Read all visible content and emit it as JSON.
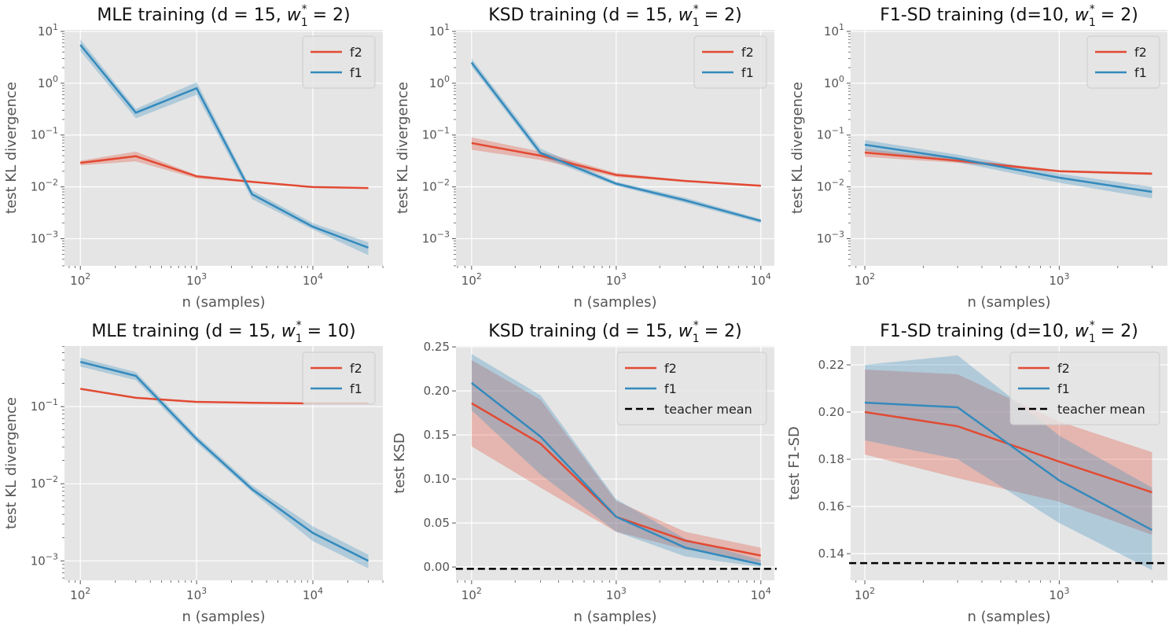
{
  "colors": {
    "f2": "#E24A33",
    "f1": "#348ABD",
    "teacher": "#000000",
    "axes_bg": "#E5E5E5",
    "grid": "#FFFFFF"
  },
  "chart_data": [
    {
      "type": "line",
      "title": {
        "before": "MLE training (d = 15, ",
        "var": "w",
        "sub": "1",
        "sup": "*",
        "after": " = 2)"
      },
      "xlabel": "n (samples)",
      "ylabel": "test KL divergence",
      "xscale": "log",
      "yscale": "log",
      "grid": true,
      "legend": "top-right",
      "xlim": [
        73,
        40000
      ],
      "ylim": [
        0.0003,
        10.7
      ],
      "xticks": [
        100,
        1000,
        10000
      ],
      "yticks": [
        0.001,
        0.01,
        0.1,
        1,
        10
      ],
      "x": [
        100,
        300,
        1000,
        3000,
        10000,
        30000
      ],
      "series": [
        {
          "name": "f2",
          "color": "#E24A33",
          "values": [
            0.029,
            0.039,
            0.016,
            0.0125,
            0.0099,
            0.0095
          ],
          "lower": [
            0.026,
            0.031,
            0.0145,
            0.012,
            0.0096,
            0.0092
          ],
          "upper": [
            0.032,
            0.048,
            0.017,
            0.013,
            0.0102,
            0.0098
          ]
        },
        {
          "name": "f1",
          "color": "#348ABD",
          "values": [
            5.5,
            0.27,
            0.8,
            0.0072,
            0.0017,
            0.00067
          ],
          "lower": [
            4.2,
            0.21,
            0.6,
            0.0058,
            0.0015,
            0.00048
          ],
          "upper": [
            7.0,
            0.32,
            1.05,
            0.0085,
            0.002,
            0.00085
          ]
        }
      ]
    },
    {
      "type": "line",
      "title": {
        "before": "KSD training (d = 15, ",
        "var": "w",
        "sub": "1",
        "sup": "*",
        "after": " = 2)"
      },
      "xlabel": "n (samples)",
      "ylabel": "test KL divergence",
      "xscale": "log",
      "yscale": "log",
      "grid": true,
      "legend": "top-right",
      "xlim": [
        78,
        12400
      ],
      "ylim": [
        0.0003,
        10.7
      ],
      "xticks": [
        100,
        1000,
        10000
      ],
      "yticks": [
        0.001,
        0.01,
        0.1,
        1,
        10
      ],
      "x": [
        100,
        300,
        1000,
        3000,
        10000
      ],
      "series": [
        {
          "name": "f2",
          "color": "#E24A33",
          "values": [
            0.07,
            0.04,
            0.017,
            0.013,
            0.0105
          ],
          "lower": [
            0.052,
            0.033,
            0.0155,
            0.0125,
            0.01
          ],
          "upper": [
            0.09,
            0.048,
            0.0185,
            0.0135,
            0.011
          ]
        },
        {
          "name": "f1",
          "color": "#348ABD",
          "values": [
            2.5,
            0.045,
            0.0115,
            0.0055,
            0.0022
          ],
          "lower": [
            2.1,
            0.038,
            0.0105,
            0.0049,
            0.002
          ],
          "upper": [
            3.0,
            0.055,
            0.0125,
            0.0062,
            0.0024
          ]
        }
      ]
    },
    {
      "type": "line",
      "title": {
        "before": "F1-SD training (d=10, ",
        "var": "w",
        "sub": "1",
        "sup": "*",
        "after": " = 2)"
      },
      "xlabel": "n (samples)",
      "ylabel": "test KL divergence",
      "xscale": "log",
      "yscale": "log",
      "grid": true,
      "legend": "top-right",
      "xlim": [
        84.5,
        3600
      ],
      "ylim": [
        0.0003,
        10.7
      ],
      "xticks": [
        100,
        1000
      ],
      "yticks": [
        0.001,
        0.01,
        0.1,
        1,
        10
      ],
      "x": [
        100,
        300,
        1000,
        3000
      ],
      "series": [
        {
          "name": "f2",
          "color": "#E24A33",
          "values": [
            0.046,
            0.032,
            0.02,
            0.018
          ],
          "lower": [
            0.038,
            0.029,
            0.019,
            0.017
          ],
          "upper": [
            0.054,
            0.035,
            0.021,
            0.019
          ]
        },
        {
          "name": "f1",
          "color": "#348ABD",
          "values": [
            0.065,
            0.035,
            0.015,
            0.008
          ],
          "lower": [
            0.05,
            0.03,
            0.012,
            0.006
          ],
          "upper": [
            0.08,
            0.042,
            0.018,
            0.01
          ]
        }
      ]
    },
    {
      "type": "line",
      "title": {
        "before": "MLE training (d = 15, ",
        "var": "w",
        "sub": "1",
        "sup": "*",
        "after": " = 10)"
      },
      "xlabel": "n (samples)",
      "ylabel": "test KL divergence",
      "xscale": "log",
      "yscale": "log",
      "grid": true,
      "legend": "top-right",
      "xlim": [
        73,
        40000
      ],
      "ylim": [
        0.00056,
        0.61
      ],
      "xticks": [
        100,
        1000,
        10000
      ],
      "yticks": [
        0.001,
        0.01,
        0.1
      ],
      "x": [
        100,
        300,
        1000,
        3000,
        10000,
        30000
      ],
      "series": [
        {
          "name": "f2",
          "color": "#E24A33",
          "values": [
            0.17,
            0.13,
            0.115,
            0.112,
            0.11,
            0.11
          ],
          "lower": [
            0.165,
            0.127,
            0.113,
            0.11,
            0.108,
            0.108
          ],
          "upper": [
            0.175,
            0.133,
            0.117,
            0.114,
            0.112,
            0.112
          ]
        },
        {
          "name": "f1",
          "color": "#348ABD",
          "values": [
            0.38,
            0.25,
            0.038,
            0.0085,
            0.0023,
            0.001
          ],
          "lower": [
            0.33,
            0.22,
            0.034,
            0.0078,
            0.0018,
            0.0008
          ],
          "upper": [
            0.43,
            0.28,
            0.042,
            0.0095,
            0.0028,
            0.0012
          ]
        }
      ]
    },
    {
      "type": "line",
      "title": {
        "before": "KSD training (d = 15, ",
        "var": "w",
        "sub": "1",
        "sup": "*",
        "after": " = 2)"
      },
      "xlabel": "n (samples)",
      "ylabel": "test KSD",
      "xscale": "log",
      "yscale": "linear",
      "grid": true,
      "legend": "top-right",
      "xlim": [
        78,
        12400
      ],
      "ylim": [
        -0.0151,
        0.251
      ],
      "xticks": [
        100,
        1000,
        10000
      ],
      "yticks": [
        0.0,
        0.05,
        0.1,
        0.15,
        0.2,
        0.25
      ],
      "ytick_labels": [
        "0.00",
        "0.05",
        "0.10",
        "0.15",
        "0.20",
        "0.25"
      ],
      "x": [
        100,
        300,
        1000,
        3000,
        10000
      ],
      "series": [
        {
          "name": "f2",
          "color": "#E24A33",
          "values": [
            0.186,
            0.14,
            0.057,
            0.03,
            0.013
          ],
          "lower": [
            0.137,
            0.09,
            0.04,
            0.02,
            0.005
          ],
          "upper": [
            0.235,
            0.19,
            0.075,
            0.04,
            0.022
          ]
        },
        {
          "name": "f1",
          "color": "#348ABD",
          "values": [
            0.209,
            0.148,
            0.057,
            0.022,
            0.003
          ],
          "lower": [
            0.178,
            0.105,
            0.04,
            0.012,
            0.0
          ],
          "upper": [
            0.242,
            0.195,
            0.077,
            0.032,
            0.008
          ]
        }
      ],
      "hline": {
        "name": "teacher mean",
        "value": -0.002,
        "color": "#000000"
      }
    },
    {
      "type": "line",
      "title": {
        "before": "F1-SD training (d=10, ",
        "var": "w",
        "sub": "1",
        "sup": "*",
        "after": " = 2)"
      },
      "xlabel": "n (samples)",
      "ylabel": "test F1-SD",
      "xscale": "log",
      "yscale": "linear",
      "grid": true,
      "legend": "top-right",
      "xlim": [
        84.5,
        3600
      ],
      "ylim": [
        0.1287,
        0.228
      ],
      "xticks": [
        100,
        1000
      ],
      "yticks": [
        0.14,
        0.16,
        0.18,
        0.2,
        0.22
      ],
      "ytick_labels": [
        "0.14",
        "0.16",
        "0.18",
        "0.20",
        "0.22"
      ],
      "x": [
        100,
        300,
        1000,
        3000
      ],
      "series": [
        {
          "name": "f2",
          "color": "#E24A33",
          "values": [
            0.2,
            0.194,
            0.179,
            0.166
          ],
          "lower": [
            0.182,
            0.172,
            0.162,
            0.148
          ],
          "upper": [
            0.218,
            0.216,
            0.196,
            0.183
          ]
        },
        {
          "name": "f1",
          "color": "#348ABD",
          "values": [
            0.204,
            0.202,
            0.171,
            0.15
          ],
          "lower": [
            0.188,
            0.18,
            0.153,
            0.133
          ],
          "upper": [
            0.22,
            0.224,
            0.19,
            0.168
          ]
        }
      ],
      "hline": {
        "name": "teacher mean",
        "value": 0.136,
        "color": "#000000"
      }
    }
  ]
}
